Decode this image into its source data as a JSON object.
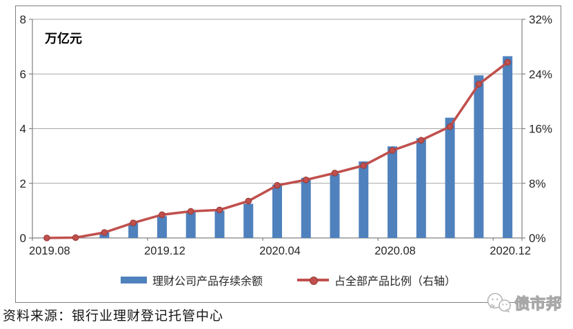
{
  "chart": {
    "unit_label": "万亿元",
    "left_axis_tick_labels": [
      "8",
      "6",
      "4",
      "2",
      "0"
    ],
    "right_axis_tick_labels": [
      "32%",
      "24%",
      "16%",
      "8%",
      "0%"
    ],
    "x_tick_labels": [
      "2019.08",
      "2019.12",
      "2020.04",
      "2020.08",
      "2020.12"
    ]
  },
  "chart_data": {
    "type": "bar",
    "subtype": "bar-line-combo-dual-axis",
    "categories": [
      "2019.08",
      "2019.09",
      "2019.10",
      "2019.11",
      "2019.12",
      "2020.01",
      "2020.02",
      "2020.03",
      "2020.04",
      "2020.05",
      "2020.06",
      "2020.07",
      "2020.08",
      "2020.09",
      "2020.10",
      "2020.11",
      "2020.12"
    ],
    "series": [
      {
        "name": "理财公司产品存续余额",
        "type": "bar",
        "axis": "left",
        "color": "#4F81BD",
        "values": [
          0,
          0,
          0.2,
          0.55,
          0.8,
          0.95,
          1.0,
          1.25,
          1.95,
          2.2,
          2.35,
          2.8,
          3.35,
          3.65,
          4.4,
          5.95,
          6.65
        ]
      },
      {
        "name": "占全部产品比例（右轴）",
        "type": "line",
        "axis": "right",
        "color": "#C0504D",
        "marker_color": "#953735",
        "values": [
          0,
          0.05,
          0.8,
          2.2,
          3.4,
          3.9,
          4.1,
          5.4,
          7.7,
          8.5,
          9.5,
          10.6,
          12.8,
          14.3,
          16.3,
          22.5,
          25.7
        ]
      }
    ],
    "left_axis": {
      "label": "万亿元",
      "min": 0,
      "max": 8,
      "step": 2
    },
    "right_axis": {
      "min": 0,
      "max": 32,
      "step": 8,
      "unit": "%"
    },
    "x_label_every": 4,
    "grid": true,
    "legend_position": "bottom"
  },
  "footer": {
    "source_note": "资料来源：银行业理财登记托管中心"
  },
  "watermark": {
    "name": "债市邦",
    "icon": "wechat-icon"
  },
  "colors": {
    "bar": "#4F81BD",
    "line": "#C0504D",
    "marker_stroke": "#953735",
    "grid": "#a6a6a6",
    "axis": "#808080",
    "text": "#262626",
    "watermark": "#b5b5b5"
  }
}
